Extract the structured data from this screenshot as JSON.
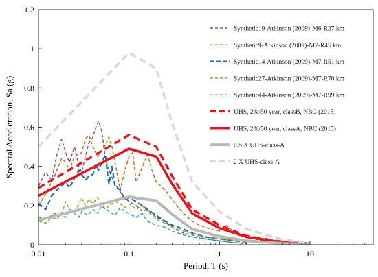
{
  "chart_data": {
    "type": "line",
    "xlabel": "Period, T (s)",
    "ylabel": "Spectral Acceleration, Sa (g)",
    "xscale": "log",
    "xlim": [
      0.01,
      50
    ],
    "ylim": [
      0,
      1.2
    ],
    "x_ticks": [
      "0.01",
      "0.1",
      "1",
      "10"
    ],
    "y_ticks": [
      "0",
      "0.2",
      "0.4",
      "0.6",
      "0.8",
      "1",
      "1.2"
    ],
    "grid": false,
    "legend_position": "top-right",
    "series": [
      {
        "name": "Synthetic19-Atkinson (2009)-M6-R27 km",
        "color": "#6f5a9c",
        "style": "dashed",
        "width": 1.5,
        "points": [
          [
            0.01,
            0.3
          ],
          [
            0.012,
            0.37
          ],
          [
            0.014,
            0.33
          ],
          [
            0.016,
            0.46
          ],
          [
            0.018,
            0.54
          ],
          [
            0.02,
            0.47
          ],
          [
            0.022,
            0.42
          ],
          [
            0.025,
            0.5
          ],
          [
            0.028,
            0.4
          ],
          [
            0.03,
            0.37
          ],
          [
            0.033,
            0.45
          ],
          [
            0.036,
            0.52
          ],
          [
            0.04,
            0.55
          ],
          [
            0.043,
            0.6
          ],
          [
            0.046,
            0.63
          ],
          [
            0.05,
            0.58
          ],
          [
            0.055,
            0.44
          ],
          [
            0.06,
            0.38
          ],
          [
            0.07,
            0.31
          ],
          [
            0.08,
            0.27
          ],
          [
            0.09,
            0.24
          ],
          [
            0.1,
            0.22
          ],
          [
            0.12,
            0.2
          ],
          [
            0.14,
            0.17
          ],
          [
            0.16,
            0.18
          ],
          [
            0.2,
            0.14
          ],
          [
            0.25,
            0.12
          ],
          [
            0.3,
            0.09
          ],
          [
            0.4,
            0.06
          ],
          [
            0.5,
            0.05
          ],
          [
            0.7,
            0.03
          ],
          [
            1,
            0.02
          ],
          [
            1.5,
            0.01
          ],
          [
            2,
            0.005
          ]
        ]
      },
      {
        "name": "Synthetic9-Atkinson (2009)-M7-R45 km",
        "color": "#c0702a",
        "style": "dashed",
        "width": 1.5,
        "points": [
          [
            0.01,
            0.2
          ],
          [
            0.012,
            0.26
          ],
          [
            0.015,
            0.35
          ],
          [
            0.018,
            0.44
          ],
          [
            0.02,
            0.42
          ],
          [
            0.022,
            0.38
          ],
          [
            0.025,
            0.45
          ],
          [
            0.03,
            0.47
          ],
          [
            0.033,
            0.54
          ],
          [
            0.036,
            0.56
          ],
          [
            0.04,
            0.5
          ],
          [
            0.045,
            0.45
          ],
          [
            0.05,
            0.48
          ],
          [
            0.055,
            0.51
          ],
          [
            0.06,
            0.55
          ],
          [
            0.065,
            0.5
          ],
          [
            0.07,
            0.42
          ],
          [
            0.08,
            0.28
          ],
          [
            0.09,
            0.38
          ],
          [
            0.1,
            0.45
          ],
          [
            0.11,
            0.47
          ],
          [
            0.12,
            0.32
          ],
          [
            0.13,
            0.36
          ],
          [
            0.15,
            0.43
          ],
          [
            0.16,
            0.46
          ],
          [
            0.18,
            0.38
          ],
          [
            0.2,
            0.32
          ],
          [
            0.25,
            0.28
          ],
          [
            0.3,
            0.23
          ],
          [
            0.35,
            0.19
          ],
          [
            0.4,
            0.16
          ],
          [
            0.5,
            0.12
          ],
          [
            0.6,
            0.1
          ],
          [
            0.8,
            0.08
          ],
          [
            1,
            0.07
          ],
          [
            1.2,
            0.1
          ],
          [
            1.5,
            0.06
          ],
          [
            2,
            0.04
          ],
          [
            3,
            0.02
          ],
          [
            4,
            0.01
          ]
        ]
      },
      {
        "name": "Synthetic14-Atkinson (2009)-M7-R51 km",
        "color": "#1e6ea8",
        "style": "dashed",
        "width": 2.2,
        "points": [
          [
            0.01,
            0.21
          ],
          [
            0.012,
            0.18
          ],
          [
            0.014,
            0.25
          ],
          [
            0.016,
            0.28
          ],
          [
            0.018,
            0.3
          ],
          [
            0.02,
            0.32
          ],
          [
            0.022,
            0.29
          ],
          [
            0.025,
            0.34
          ],
          [
            0.028,
            0.38
          ],
          [
            0.03,
            0.36
          ],
          [
            0.033,
            0.33
          ],
          [
            0.036,
            0.35
          ],
          [
            0.04,
            0.36
          ],
          [
            0.043,
            0.41
          ],
          [
            0.046,
            0.38
          ],
          [
            0.05,
            0.42
          ],
          [
            0.055,
            0.46
          ],
          [
            0.058,
            0.36
          ],
          [
            0.06,
            0.31
          ],
          [
            0.065,
            0.4
          ],
          [
            0.07,
            0.3
          ],
          [
            0.08,
            0.28
          ],
          [
            0.09,
            0.23
          ],
          [
            0.1,
            0.24
          ],
          [
            0.12,
            0.22
          ],
          [
            0.14,
            0.2
          ],
          [
            0.16,
            0.18
          ],
          [
            0.2,
            0.15
          ],
          [
            0.25,
            0.12
          ],
          [
            0.3,
            0.1
          ],
          [
            0.4,
            0.08
          ],
          [
            0.5,
            0.06
          ],
          [
            0.7,
            0.04
          ],
          [
            1,
            0.03
          ],
          [
            1.5,
            0.02
          ],
          [
            2,
            0.01
          ]
        ]
      },
      {
        "name": "Synthetic27-Atkinson (2009)-M7-R70 km",
        "color": "#8ea531",
        "style": "dashed",
        "width": 1.5,
        "points": [
          [
            0.01,
            0.12
          ],
          [
            0.012,
            0.11
          ],
          [
            0.014,
            0.14
          ],
          [
            0.016,
            0.13
          ],
          [
            0.018,
            0.16
          ],
          [
            0.02,
            0.22
          ],
          [
            0.022,
            0.18
          ],
          [
            0.025,
            0.17
          ],
          [
            0.028,
            0.21
          ],
          [
            0.03,
            0.24
          ],
          [
            0.033,
            0.2
          ],
          [
            0.036,
            0.23
          ],
          [
            0.04,
            0.21
          ],
          [
            0.045,
            0.24
          ],
          [
            0.05,
            0.2
          ],
          [
            0.055,
            0.18
          ],
          [
            0.06,
            0.2
          ],
          [
            0.07,
            0.22
          ],
          [
            0.08,
            0.21
          ],
          [
            0.09,
            0.19
          ],
          [
            0.1,
            0.21
          ],
          [
            0.12,
            0.18
          ],
          [
            0.14,
            0.2
          ],
          [
            0.16,
            0.17
          ],
          [
            0.2,
            0.13
          ],
          [
            0.25,
            0.11
          ],
          [
            0.3,
            0.09
          ],
          [
            0.4,
            0.07
          ],
          [
            0.5,
            0.06
          ],
          [
            0.7,
            0.04
          ],
          [
            1,
            0.03
          ],
          [
            1.5,
            0.02
          ],
          [
            2,
            0.01
          ]
        ]
      },
      {
        "name": "Synthetic44-Atkinson (2009)-M7-R99 km",
        "color": "#3d9bc4",
        "style": "dashed",
        "width": 1.5,
        "points": [
          [
            0.01,
            0.14
          ],
          [
            0.012,
            0.13
          ],
          [
            0.015,
            0.16
          ],
          [
            0.018,
            0.15
          ],
          [
            0.02,
            0.14
          ],
          [
            0.022,
            0.18
          ],
          [
            0.025,
            0.16
          ],
          [
            0.028,
            0.14
          ],
          [
            0.03,
            0.17
          ],
          [
            0.035,
            0.15
          ],
          [
            0.04,
            0.18
          ],
          [
            0.045,
            0.16
          ],
          [
            0.05,
            0.2
          ],
          [
            0.06,
            0.17
          ],
          [
            0.07,
            0.15
          ],
          [
            0.08,
            0.19
          ],
          [
            0.09,
            0.17
          ],
          [
            0.1,
            0.16
          ],
          [
            0.12,
            0.14
          ],
          [
            0.14,
            0.16
          ],
          [
            0.16,
            0.12
          ],
          [
            0.2,
            0.1
          ],
          [
            0.25,
            0.09
          ],
          [
            0.3,
            0.07
          ],
          [
            0.4,
            0.05
          ],
          [
            0.5,
            0.04
          ],
          [
            0.7,
            0.03
          ],
          [
            1,
            0.02
          ],
          [
            1.5,
            0.01
          ]
        ]
      },
      {
        "name": "UHS, 2%/50 year, classB, NBC (2015)",
        "color": "#e8141c",
        "style": "dashed",
        "width": 3.2,
        "points": [
          [
            0.01,
            0.29
          ],
          [
            0.1,
            0.56
          ],
          [
            0.2,
            0.5
          ],
          [
            0.3,
            0.35
          ],
          [
            0.5,
            0.18
          ],
          [
            1,
            0.1
          ],
          [
            2,
            0.045
          ],
          [
            5,
            0.015
          ],
          [
            10,
            0.006
          ]
        ]
      },
      {
        "name": "UHS, 2%/50 year, classA, NBC (2015)",
        "color": "#e8141c",
        "style": "solid",
        "width": 3.5,
        "points": [
          [
            0.01,
            0.25
          ],
          [
            0.1,
            0.49
          ],
          [
            0.2,
            0.45
          ],
          [
            0.3,
            0.31
          ],
          [
            0.5,
            0.16
          ],
          [
            1,
            0.085
          ],
          [
            2,
            0.04
          ],
          [
            5,
            0.013
          ],
          [
            10,
            0.005
          ]
        ]
      },
      {
        "name": "0.5 X UHS-class-A",
        "color": "#b9b9b9",
        "style": "solid",
        "width": 4,
        "points": [
          [
            0.01,
            0.125
          ],
          [
            0.1,
            0.245
          ],
          [
            0.2,
            0.225
          ],
          [
            0.3,
            0.155
          ],
          [
            0.5,
            0.08
          ],
          [
            1,
            0.0425
          ],
          [
            2,
            0.02
          ],
          [
            5,
            0.0065
          ],
          [
            10,
            0.0025
          ]
        ]
      },
      {
        "name": "2 X UHS-class-A",
        "color": "#d9d9d9",
        "style": "dashed",
        "width": 3.5,
        "points": [
          [
            0.01,
            0.5
          ],
          [
            0.1,
            0.98
          ],
          [
            0.2,
            0.9
          ],
          [
            0.3,
            0.62
          ],
          [
            0.5,
            0.32
          ],
          [
            1,
            0.17
          ],
          [
            2,
            0.08
          ],
          [
            5,
            0.026
          ],
          [
            10,
            0.01
          ]
        ]
      }
    ]
  }
}
